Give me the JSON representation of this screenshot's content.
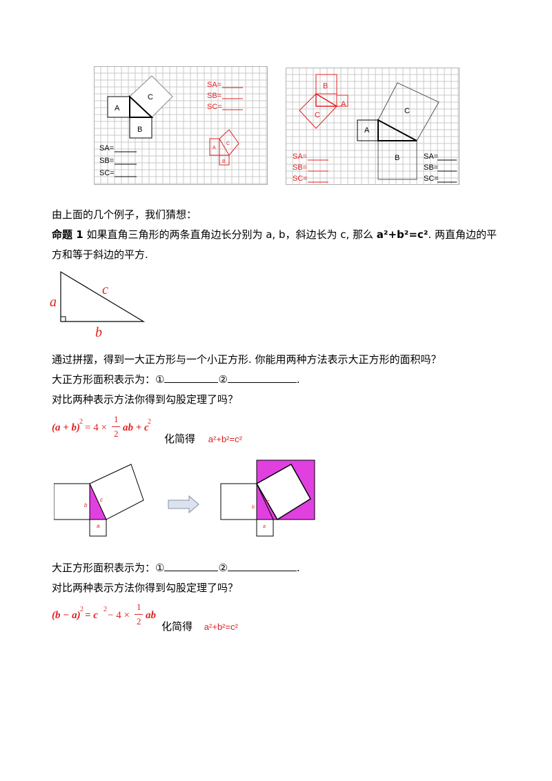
{
  "grid1": {
    "labels": {
      "A": "A",
      "B": "B",
      "C": "C"
    },
    "s_black": [
      "SA=",
      "SB=",
      "SC="
    ],
    "s_red": [
      "SA=",
      "SB=",
      "SC="
    ],
    "small_red": {
      "A": "A",
      "B": "B",
      "C": "C"
    }
  },
  "grid2": {
    "labels": {
      "A": "A",
      "B": "B",
      "C": "C"
    },
    "red_labels": {
      "A": "A",
      "B": "B",
      "C": "C"
    },
    "s_red": [
      "SA=",
      "SB=",
      "SC="
    ],
    "s_black": [
      "SA=",
      "SB=",
      "SC="
    ]
  },
  "intro": "由上面的几个例子，我们猜想：",
  "proposition": {
    "label": "命题 1",
    "text_before": "如果直角三角形的两条直角边长分别为 a, b，斜边长为 c, 那么 ",
    "formula": "a²+b²=c²",
    "text_after": ". 两直角边的平",
    "line2": "方和等于斜边的平方."
  },
  "triangle_labels": {
    "a": "a",
    "b": "b",
    "c": "c"
  },
  "q1": "通过拼摆，得到一大正方形与一个小正方形. 你能用两种方法表示大正方形的面积吗？",
  "area1": {
    "prefix": "大正方形面积表示为：①",
    "mid": "②",
    "end": "."
  },
  "compare1": "对比两种表示方法你得到勾股定理了吗？",
  "eq1": {
    "lhs": "(a + b)",
    "exp": "2",
    "rhs_pre": " = 4 ×",
    "frac_num": "1",
    "frac_den": "2",
    "rhs_post": "ab + c",
    "rhs_exp": "2"
  },
  "simplify1": {
    "label": "化简得",
    "result": "a²+b²=c²"
  },
  "fig2_labels": {
    "a": "a",
    "b": "b",
    "c": "c"
  },
  "area2": {
    "prefix": "大正方形面积表示为：①",
    "mid": "②",
    "end": "."
  },
  "compare2": "对比两种表示方法你得到勾股定理了吗？",
  "eq2": {
    "lhs": "(b − a)",
    "exp": "2",
    "rhs_pre": " = c",
    "rhs_exp": "2",
    "rhs_mid": " − 4 ×",
    "frac_num": "1",
    "frac_den": "2",
    "rhs_post": "ab"
  },
  "simplify2": {
    "label": "化简得",
    "result": "a²+b²=c²"
  },
  "colors": {
    "red": "#e02020",
    "magenta": "#e040e0",
    "grid": "#c8c8c8"
  }
}
